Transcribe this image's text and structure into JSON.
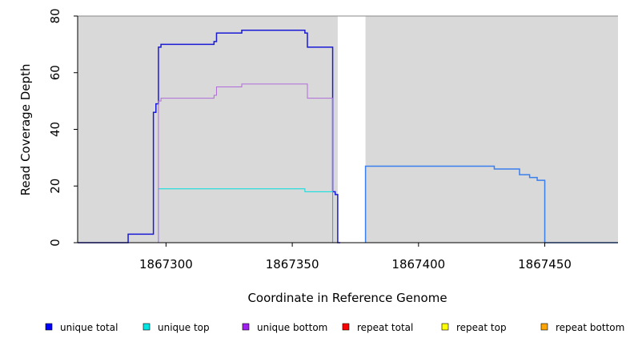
{
  "chart_data": {
    "type": "line",
    "title": "",
    "xlabel": "Coordinate in Reference Genome",
    "ylabel": "Read Coverage Depth",
    "xlim": [
      1867265,
      1867479
    ],
    "ylim": [
      0,
      80
    ],
    "x_ticks": [
      1867300,
      1867350,
      1867400,
      1867450
    ],
    "x_tick_labels": [
      "1867300",
      "1867350",
      "1867400",
      "1867450"
    ],
    "y_ticks": [
      0,
      20,
      40,
      60,
      80
    ],
    "y_tick_labels": [
      "0",
      "20",
      "40",
      "60",
      "80"
    ],
    "grid": false,
    "background_color": "#d9d9d9",
    "background_gap": [
      1867368,
      1867379
    ],
    "legend_position": "bottom",
    "series": [
      {
        "name": "unique total",
        "color": "#1a1ad6",
        "points": [
          [
            1867265,
            0
          ],
          [
            1867285,
            0
          ],
          [
            1867285,
            3
          ],
          [
            1867295,
            3
          ],
          [
            1867295,
            46
          ],
          [
            1867296,
            46
          ],
          [
            1867296,
            49
          ],
          [
            1867297,
            49
          ],
          [
            1867297,
            69
          ],
          [
            1867298,
            69
          ],
          [
            1867298,
            70
          ],
          [
            1867319,
            70
          ],
          [
            1867319,
            71
          ],
          [
            1867320,
            71
          ],
          [
            1867320,
            74
          ],
          [
            1867330,
            74
          ],
          [
            1867330,
            75
          ],
          [
            1867355,
            75
          ],
          [
            1867355,
            74
          ],
          [
            1867356,
            74
          ],
          [
            1867356,
            69
          ],
          [
            1867366,
            69
          ],
          [
            1867366,
            18
          ],
          [
            1867367,
            18
          ],
          [
            1867367,
            17
          ],
          [
            1867368,
            17
          ],
          [
            1867368,
            0
          ],
          [
            1867369,
            0
          ]
        ]
      },
      {
        "name": "unique top",
        "color": "#00dede",
        "points": [
          [
            1867265,
            0
          ],
          [
            1867297,
            0
          ],
          [
            1867297,
            19
          ],
          [
            1867355,
            19
          ],
          [
            1867355,
            18
          ],
          [
            1867366,
            18
          ],
          [
            1867366,
            0
          ],
          [
            1867369,
            0
          ]
        ]
      },
      {
        "name": "unique bottom",
        "color": "#b06cd8",
        "points": [
          [
            1867265,
            0
          ],
          [
            1867297,
            0
          ],
          [
            1867297,
            50
          ],
          [
            1867298,
            50
          ],
          [
            1867298,
            51
          ],
          [
            1867319,
            51
          ],
          [
            1867319,
            52
          ],
          [
            1867320,
            52
          ],
          [
            1867320,
            55
          ],
          [
            1867330,
            55
          ],
          [
            1867330,
            56
          ],
          [
            1867356,
            56
          ],
          [
            1867356,
            51
          ],
          [
            1867366,
            51
          ],
          [
            1867366,
            0
          ],
          [
            1867369,
            0
          ]
        ]
      },
      {
        "name": "repeat total",
        "color": "#ff0000",
        "points": [
          [
            1867379,
            0
          ],
          [
            1867479,
            0
          ]
        ]
      },
      {
        "name": "repeat top",
        "color": "#ffff00",
        "points": [
          [
            1867265,
            0
          ],
          [
            1867368,
            0
          ]
        ]
      },
      {
        "name": "repeat bottom",
        "color": "#ffa500",
        "points": [
          [
            1867265,
            0
          ],
          [
            1867368,
            0
          ]
        ]
      },
      {
        "name": "",
        "color": "#3a7fee",
        "points": [
          [
            1867379,
            0
          ],
          [
            1867379,
            27
          ],
          [
            1867430,
            27
          ],
          [
            1867430,
            26
          ],
          [
            1867440,
            26
          ],
          [
            1867440,
            24
          ],
          [
            1867444,
            24
          ],
          [
            1867444,
            23
          ],
          [
            1867447,
            23
          ],
          [
            1867447,
            22
          ],
          [
            1867450,
            22
          ],
          [
            1867450,
            0
          ],
          [
            1867479,
            0
          ]
        ]
      }
    ],
    "legend": [
      {
        "label": "unique total",
        "color": "#0000ff"
      },
      {
        "label": "unique top",
        "color": "#00e5e5"
      },
      {
        "label": "unique bottom",
        "color": "#a020f0"
      },
      {
        "label": "repeat total",
        "color": "#ff0000"
      },
      {
        "label": "repeat top",
        "color": "#ffff00"
      },
      {
        "label": "repeat bottom",
        "color": "#ffa500"
      }
    ]
  }
}
